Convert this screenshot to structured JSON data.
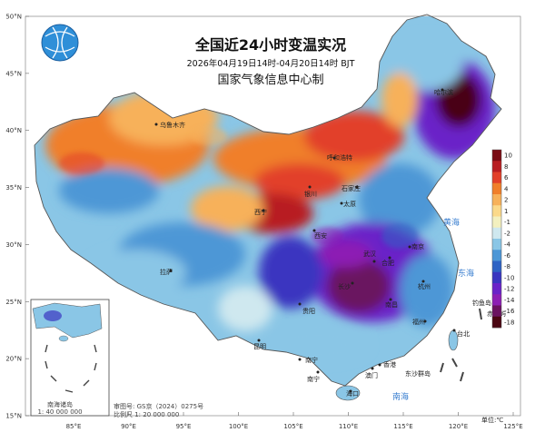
{
  "title": "全国近24小时变温实况",
  "subtitle": "2026年04月19日14时-04月20日14时 BJT",
  "organization": "国家气象信息中心制",
  "lat_labels": [
    "50°N",
    "45°N",
    "40°N",
    "35°N",
    "30°N",
    "25°N",
    "20°N",
    "15°N"
  ],
  "lon_labels": [
    "85°E",
    "90°E",
    "95°E",
    "100°E",
    "105°E",
    "110°E",
    "115°E",
    "120°E",
    "125°E"
  ],
  "legend": {
    "labels": [
      "10",
      "8",
      "6",
      "4",
      "2",
      "1",
      "-1",
      "-2",
      "-4",
      "-6",
      "-8",
      "-10",
      "-12",
      "-14",
      "-16",
      "-18"
    ],
    "colors": [
      "#7a0c14",
      "#b81e22",
      "#e2402a",
      "#f07f2b",
      "#f7b15a",
      "#fbd98a",
      "#f3f0bf",
      "#cfe8ef",
      "#8ac6e6",
      "#4d97d6",
      "#2e63c4",
      "#3a36c0",
      "#6a23c8",
      "#8d1fb4",
      "#6b1260",
      "#4a0612"
    ],
    "unit": "单位:℃"
  },
  "cities": [
    "乌鲁木齐",
    "哈尔滨",
    "呼和浩特",
    "石家庄",
    "银川",
    "西宁",
    "太原",
    "西安",
    "拉萨",
    "南京",
    "合肥",
    "杭州",
    "南昌",
    "福州",
    "南宁",
    "昆明",
    "贵阳",
    "长沙",
    "武汉",
    "香港",
    "澳门",
    "海口",
    "台北",
    "南宁"
  ],
  "seas": [
    "黄海",
    "东海",
    "南海"
  ],
  "islands": [
    "东沙群岛",
    "钓鱼岛",
    "赤尾屿"
  ],
  "inset_label": "南海诸岛",
  "inset_scale": "1: 40 000 000",
  "review_number": "审图号: GS京（2024）0275号",
  "scale_note": "比例尺  1:  20 000 000"
}
